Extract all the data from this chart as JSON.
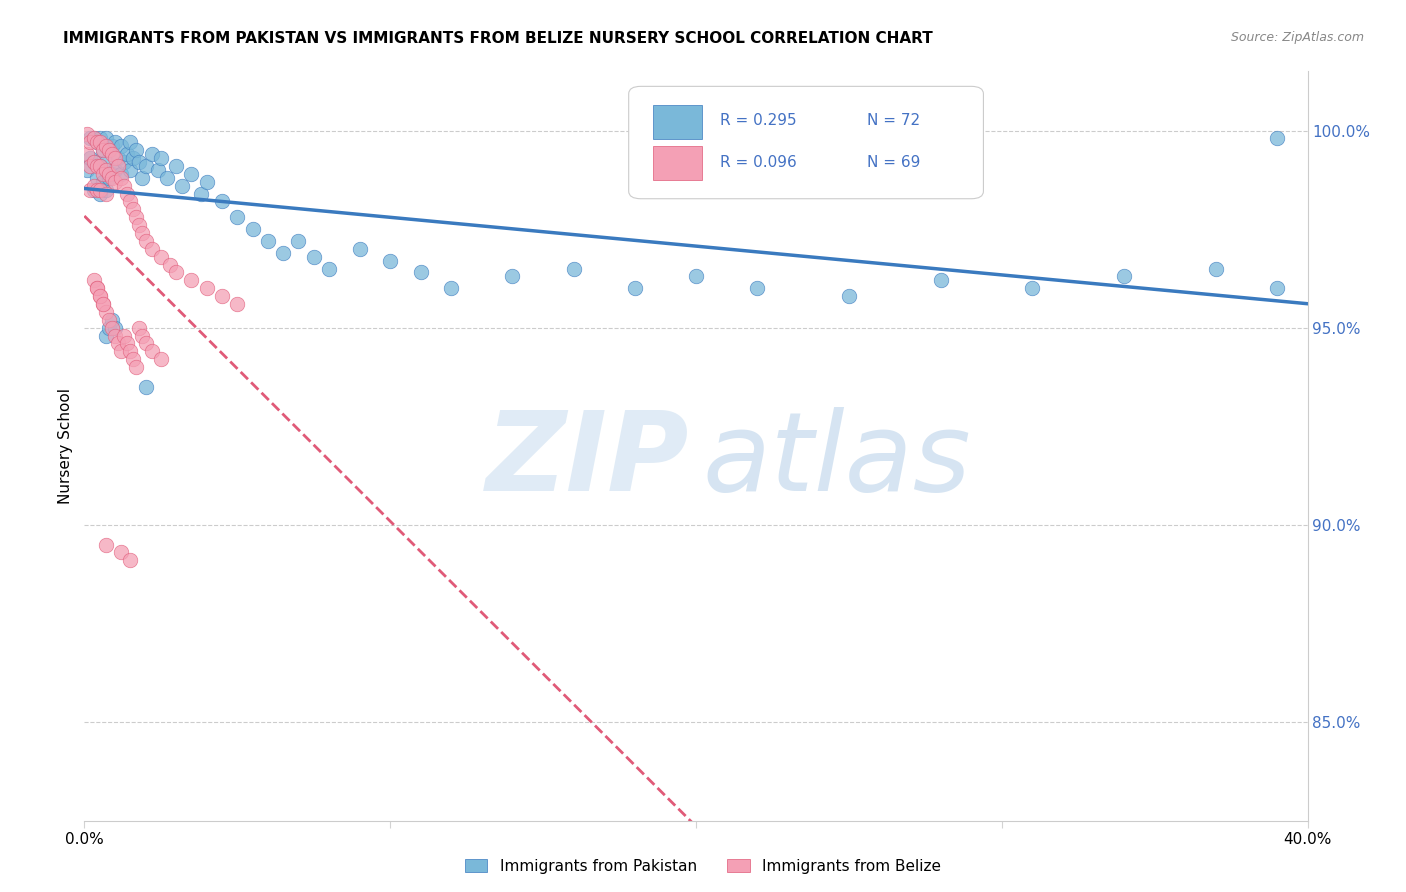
{
  "title": "IMMIGRANTS FROM PAKISTAN VS IMMIGRANTS FROM BELIZE NURSERY SCHOOL CORRELATION CHART",
  "source": "Source: ZipAtlas.com",
  "ylabel": "Nursery School",
  "ytick_labels": [
    "100.0%",
    "95.0%",
    "90.0%",
    "85.0%"
  ],
  "ytick_values": [
    1.0,
    0.95,
    0.9,
    0.85
  ],
  "xmin": 0.0,
  "xmax": 0.4,
  "ymin": 0.825,
  "ymax": 1.015,
  "legend_R_pakistan": "R = 0.295",
  "legend_N_pakistan": "N = 72",
  "legend_R_belize": "R = 0.096",
  "legend_N_belize": "N = 69",
  "color_pakistan": "#7ab8d9",
  "color_belize": "#f4a0b5",
  "color_pakistan_line": "#3a7abf",
  "color_belize_line": "#e05a78",
  "pakistan_x": [
    0.001,
    0.002,
    0.002,
    0.003,
    0.003,
    0.003,
    0.004,
    0.004,
    0.005,
    0.005,
    0.005,
    0.006,
    0.006,
    0.007,
    0.007,
    0.007,
    0.008,
    0.008,
    0.009,
    0.009,
    0.01,
    0.01,
    0.011,
    0.012,
    0.012,
    0.013,
    0.014,
    0.015,
    0.015,
    0.016,
    0.017,
    0.018,
    0.019,
    0.02,
    0.022,
    0.024,
    0.025,
    0.027,
    0.03,
    0.032,
    0.035,
    0.038,
    0.04,
    0.045,
    0.05,
    0.055,
    0.06,
    0.065,
    0.07,
    0.075,
    0.08,
    0.09,
    0.1,
    0.11,
    0.12,
    0.14,
    0.16,
    0.18,
    0.2,
    0.22,
    0.25,
    0.28,
    0.31,
    0.34,
    0.37,
    0.39,
    0.007,
    0.008,
    0.009,
    0.01,
    0.39,
    0.02
  ],
  "pakistan_y": [
    0.99,
    0.998,
    0.993,
    0.998,
    0.992,
    0.985,
    0.997,
    0.988,
    0.998,
    0.991,
    0.984,
    0.995,
    0.987,
    0.998,
    0.992,
    0.985,
    0.995,
    0.988,
    0.996,
    0.989,
    0.997,
    0.99,
    0.993,
    0.996,
    0.989,
    0.992,
    0.994,
    0.997,
    0.99,
    0.993,
    0.995,
    0.992,
    0.988,
    0.991,
    0.994,
    0.99,
    0.993,
    0.988,
    0.991,
    0.986,
    0.989,
    0.984,
    0.987,
    0.982,
    0.978,
    0.975,
    0.972,
    0.969,
    0.972,
    0.968,
    0.965,
    0.97,
    0.967,
    0.964,
    0.96,
    0.963,
    0.965,
    0.96,
    0.963,
    0.96,
    0.958,
    0.962,
    0.96,
    0.963,
    0.965,
    0.96,
    0.948,
    0.95,
    0.952,
    0.95,
    0.998,
    0.935
  ],
  "belize_x": [
    0.001,
    0.001,
    0.002,
    0.002,
    0.002,
    0.003,
    0.003,
    0.003,
    0.004,
    0.004,
    0.004,
    0.005,
    0.005,
    0.005,
    0.006,
    0.006,
    0.007,
    0.007,
    0.007,
    0.008,
    0.008,
    0.009,
    0.009,
    0.01,
    0.01,
    0.011,
    0.012,
    0.013,
    0.014,
    0.015,
    0.016,
    0.017,
    0.018,
    0.019,
    0.02,
    0.022,
    0.025,
    0.028,
    0.03,
    0.035,
    0.04,
    0.045,
    0.05,
    0.003,
    0.004,
    0.005,
    0.006,
    0.007,
    0.008,
    0.009,
    0.01,
    0.011,
    0.012,
    0.013,
    0.014,
    0.015,
    0.016,
    0.017,
    0.018,
    0.019,
    0.02,
    0.022,
    0.025,
    0.004,
    0.005,
    0.006,
    0.007,
    0.012,
    0.015
  ],
  "belize_y": [
    0.999,
    0.994,
    0.997,
    0.991,
    0.985,
    0.998,
    0.992,
    0.986,
    0.997,
    0.991,
    0.985,
    0.997,
    0.991,
    0.985,
    0.995,
    0.989,
    0.996,
    0.99,
    0.984,
    0.995,
    0.989,
    0.994,
    0.988,
    0.993,
    0.987,
    0.991,
    0.988,
    0.986,
    0.984,
    0.982,
    0.98,
    0.978,
    0.976,
    0.974,
    0.972,
    0.97,
    0.968,
    0.966,
    0.964,
    0.962,
    0.96,
    0.958,
    0.956,
    0.962,
    0.96,
    0.958,
    0.956,
    0.954,
    0.952,
    0.95,
    0.948,
    0.946,
    0.944,
    0.948,
    0.946,
    0.944,
    0.942,
    0.94,
    0.95,
    0.948,
    0.946,
    0.944,
    0.942,
    0.96,
    0.958,
    0.956,
    0.895,
    0.893,
    0.891
  ]
}
